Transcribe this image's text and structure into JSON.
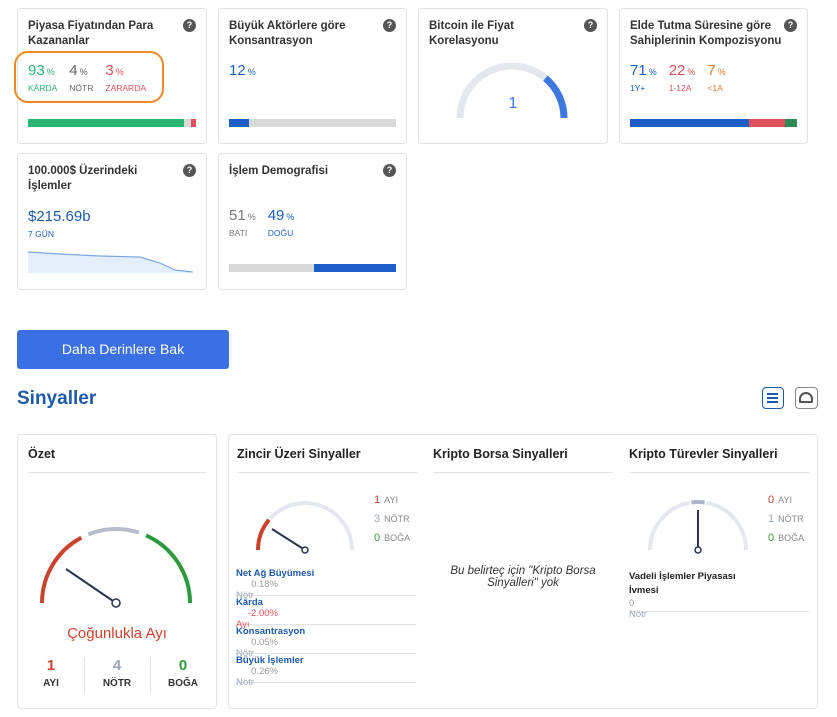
{
  "unit": "%",
  "cards": [
    {
      "title": "Piyasa Fiyatından Para Kazananlar",
      "stats": [
        {
          "value": 93,
          "label": "KÂRDA",
          "color": "#2bb673",
          "bar_color": "#2bb673"
        },
        {
          "value": 4,
          "label": "NÖTR",
          "color": "#666666",
          "bar_color": "#d9d9d9"
        },
        {
          "value": 3,
          "label": "ZARARDA",
          "color": "#e0505a",
          "bar_color": "#e0505a"
        }
      ]
    },
    {
      "title": "Büyük Aktörlere göre Konsantrasyon",
      "stats": [
        {
          "value": 12,
          "color": "#1d5fc4",
          "bar_color": "#1d5fc4"
        }
      ]
    },
    {
      "title": "Bitcoin ile Fiyat Korelasyonu",
      "value": 1
    },
    {
      "title": "Elde Tutma Süresine göre Sahiplerinin Kompozisyonu",
      "stats": [
        {
          "value": 71,
          "label": "1Y+",
          "color": "#1d5fc4",
          "bar_color": "#1d5fc4"
        },
        {
          "value": 22,
          "label": "1-12A",
          "color": "#e0505a",
          "bar_color": "#e0505a"
        },
        {
          "value": 7,
          "label": "<1A",
          "color": "#e07a2e",
          "bar_color": "#2e8b57"
        }
      ]
    },
    {
      "title": "100.000$ Üzerindeki İşlemler",
      "value": "$215.69b",
      "sub": "7 GÜN"
    },
    {
      "title": "İşlem Demografisi",
      "stats": [
        {
          "value": 51,
          "label": "BATI",
          "color": "#777777",
          "bar_color": "#d9d9d9"
        },
        {
          "value": 49,
          "label": "DOĞU",
          "color": "#1d5fc4",
          "bar_color": "#1d5fc4"
        }
      ]
    }
  ],
  "button": "Daha Derinlere Bak",
  "section_title": "Sinyaller",
  "summary": {
    "title": "Özet",
    "verdict": "Çoğunlukla Ayı",
    "counts": [
      {
        "value": 1,
        "label": "AYI",
        "color": "#c9432f"
      },
      {
        "value": 4,
        "label": "NÖTR",
        "color": "#9aa6b8"
      },
      {
        "value": 0,
        "label": "BOĞA",
        "color": "#2e9a3e"
      }
    ]
  },
  "onchain": {
    "title": "Zincir Üzeri Sinyaller",
    "counts": [
      {
        "value": 1,
        "label": "AYI",
        "color": "#c9432f"
      },
      {
        "value": 3,
        "label": "NÖTR",
        "color": "#9aa6b8"
      },
      {
        "value": 0,
        "label": "BOĞA",
        "color": "#2e9a3e"
      }
    ],
    "rows": [
      {
        "name": "Net Ağ Büyümesi",
        "value": "0.18%",
        "signal": "Nötr",
        "color": "#9aa6b8"
      },
      {
        "name": "Kârda",
        "value": "-2.00%",
        "signal": "Ayı",
        "color": "#e0505a"
      },
      {
        "name": "Konsantrasyon",
        "value": "0.05%",
        "signal": "Nötr",
        "color": "#9aa6b8"
      },
      {
        "name": "Büyük İşlemler",
        "value": "0.26%",
        "signal": "Nötr",
        "color": "#9aa6b8"
      }
    ]
  },
  "exchange": {
    "title": "Kripto Borsa Sinyalleri",
    "message": "Bu belirteç için \"Kripto Borsa Sinyalleri\" yok"
  },
  "derivatives": {
    "title": "Kripto Türevler Sinyalleri",
    "counts": [
      {
        "value": 0,
        "label": "AYI",
        "color": "#c9432f"
      },
      {
        "value": 1,
        "label": "NÖTR",
        "color": "#9aa6b8"
      },
      {
        "value": 0,
        "label": "BOĞA",
        "color": "#2e9a3e"
      }
    ],
    "rows": [
      {
        "name": "Vadeli İşlemler Piyasası İvmesi",
        "value": "0",
        "signal": "Nötr",
        "color": "#9aa6b8"
      }
    ]
  }
}
